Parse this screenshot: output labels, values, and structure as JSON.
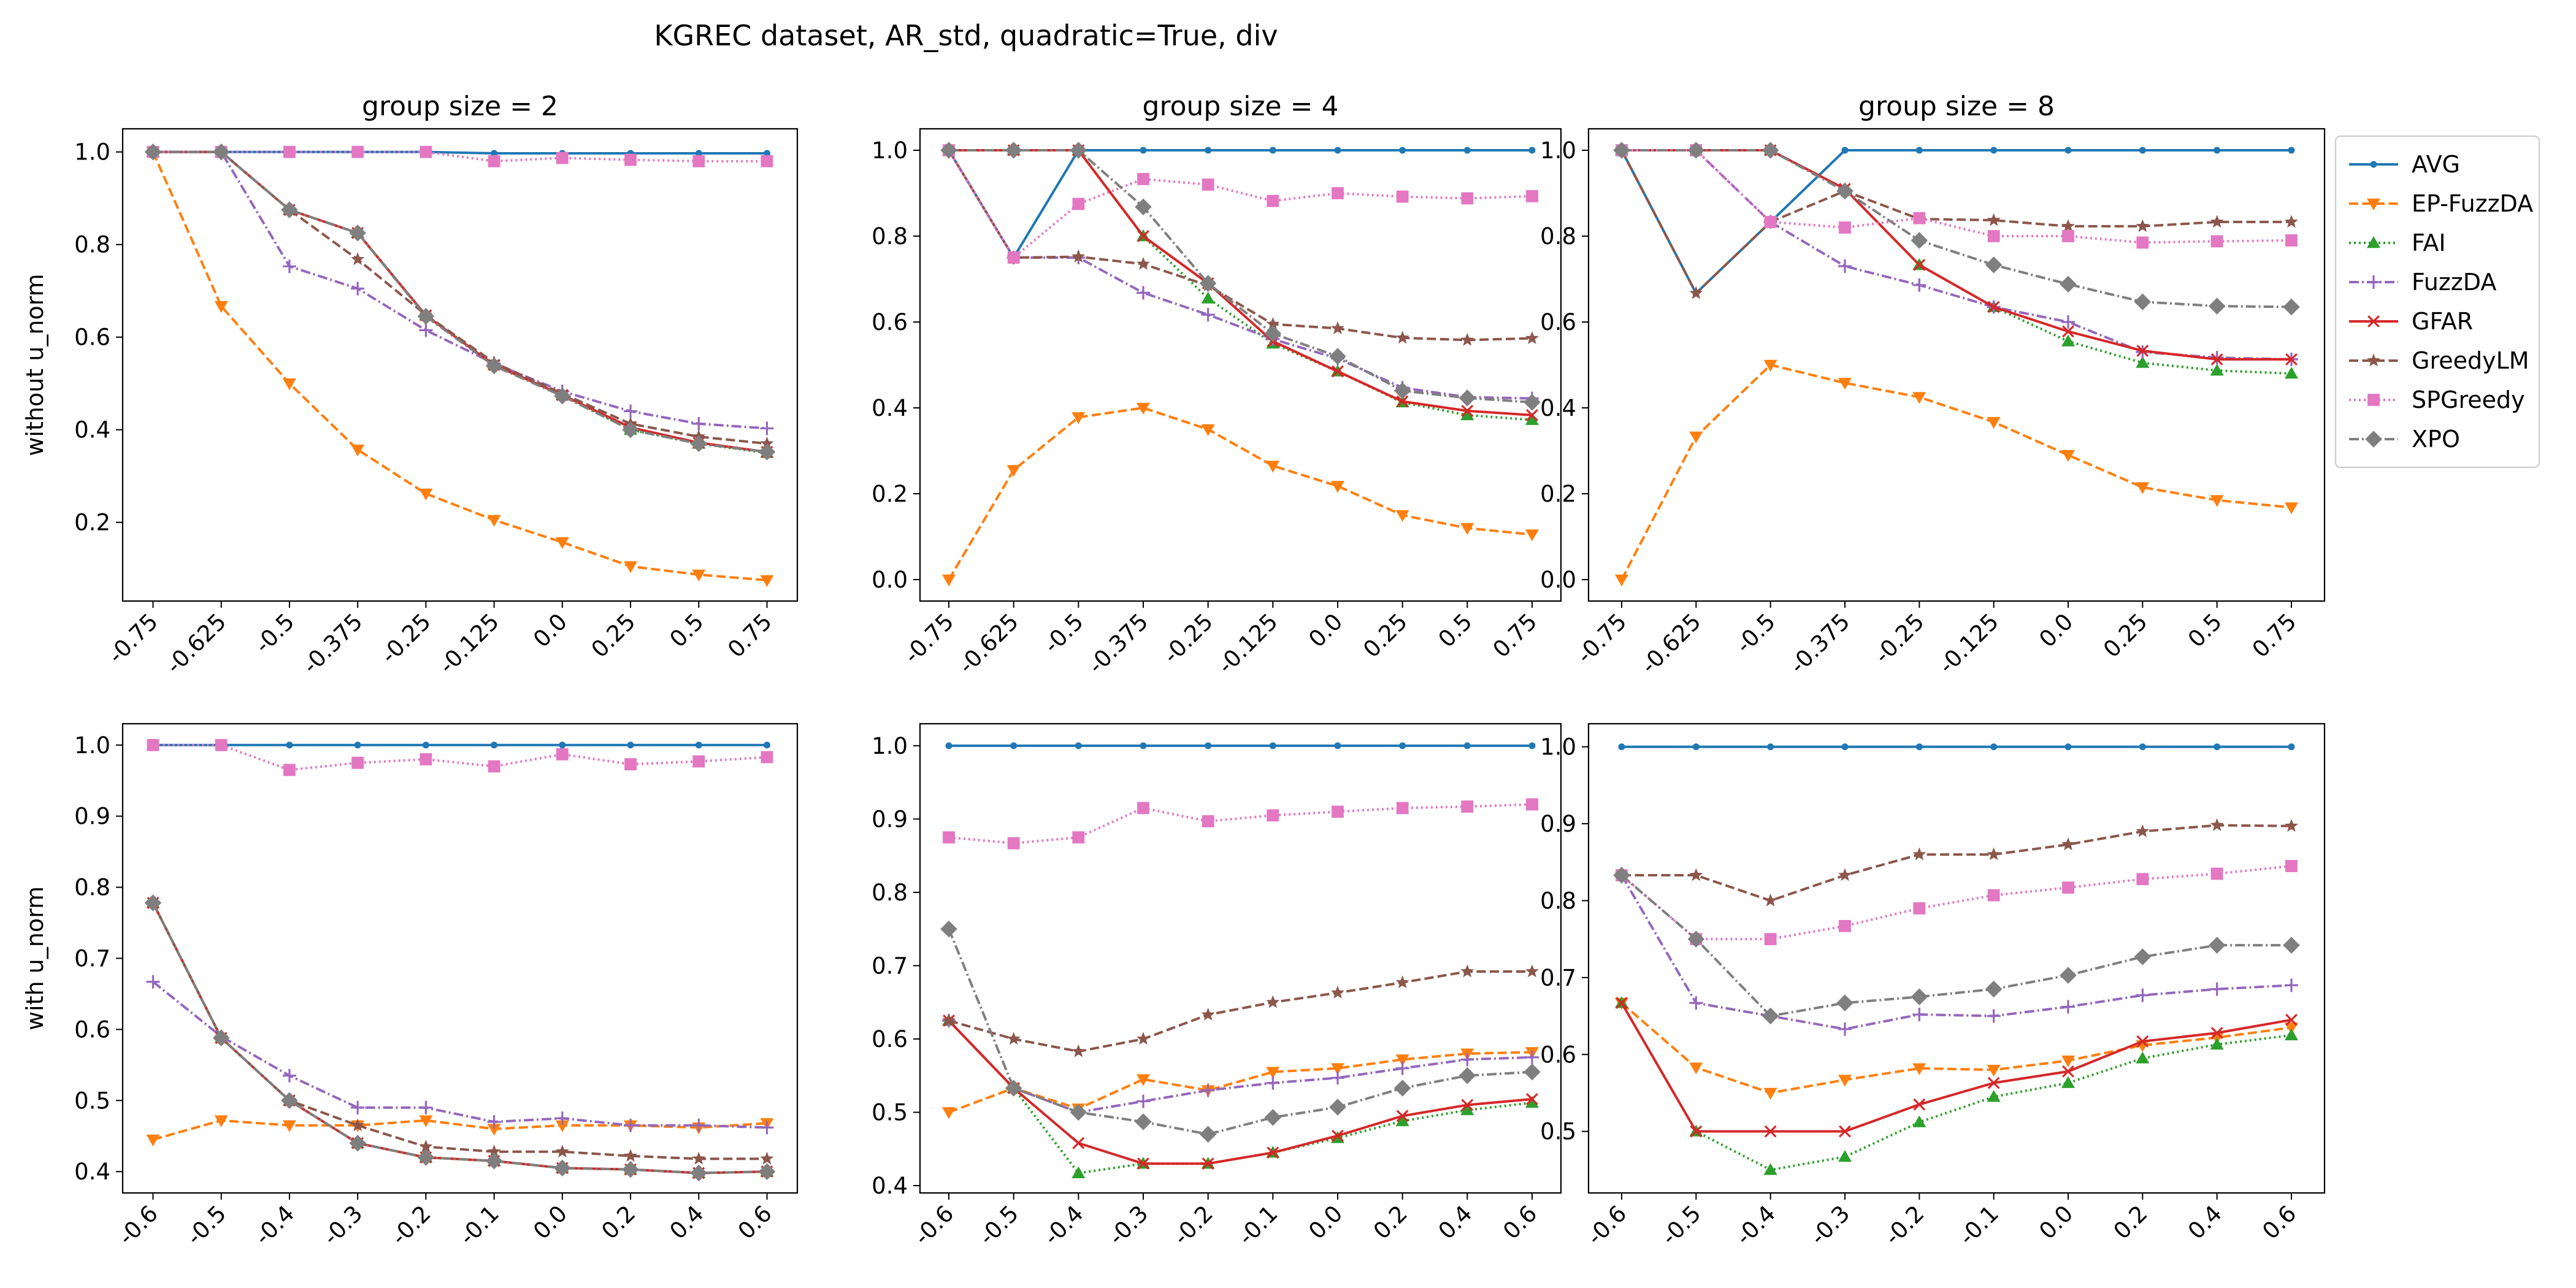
{
  "figure": {
    "suptitle": "KGREC dataset, AR_std, quadratic=True, div"
  },
  "series_styles": [
    {
      "name": "AVG",
      "color": "#1f77b4",
      "marker": "dot",
      "dash": "solid"
    },
    {
      "name": "EP-FuzzDA",
      "color": "#ff7f0e",
      "marker": "triangle-down",
      "dash": "dashed"
    },
    {
      "name": "FAI",
      "color": "#2ca02c",
      "marker": "triangle-up",
      "dash": "dotted"
    },
    {
      "name": "FuzzDA",
      "color": "#9467bd",
      "marker": "plus",
      "dash": "dashdot"
    },
    {
      "name": "GFAR",
      "color": "#d62728",
      "marker": "x",
      "dash": "solid"
    },
    {
      "name": "GreedyLM",
      "color": "#8c564b",
      "marker": "star",
      "dash": "dashed"
    },
    {
      "name": "SPGreedy",
      "color": "#e377c2",
      "marker": "square",
      "dash": "dotted"
    },
    {
      "name": "XPO",
      "color": "#7f7f7f",
      "marker": "diamond",
      "dash": "dashdot"
    }
  ],
  "chart_data": [
    {
      "type": "line",
      "row": 0,
      "col": 0,
      "title": "group size = 2",
      "ylabel": "without u_norm",
      "categories": [
        "-0.75",
        "-0.625",
        "-0.5",
        "-0.375",
        "-0.25",
        "-0.125",
        "0.0",
        "0.25",
        "0.5",
        "0.75"
      ],
      "ylim": [
        0.03,
        1.05
      ],
      "yticks": [
        0.2,
        0.4,
        0.6,
        0.8,
        1.0
      ],
      "ytick_labels": [
        "0.2",
        "0.4",
        "0.6",
        "0.8",
        "1.0"
      ],
      "series": [
        {
          "name": "AVG",
          "values": [
            1.0,
            1.0,
            1.0,
            1.0,
            1.0,
            0.997,
            0.997,
            0.997,
            0.997,
            0.997
          ]
        },
        {
          "name": "EP-FuzzDA",
          "values": [
            1.0,
            0.667,
            0.5,
            0.357,
            0.262,
            0.205,
            0.157,
            0.105,
            0.087,
            0.075
          ]
        },
        {
          "name": "FAI",
          "values": [
            1.0,
            1.0,
            0.875,
            0.825,
            0.647,
            0.54,
            0.475,
            0.4,
            0.37,
            0.35
          ]
        },
        {
          "name": "FuzzDA",
          "values": [
            1.0,
            1.0,
            0.753,
            0.705,
            0.615,
            0.543,
            0.483,
            0.44,
            0.413,
            0.403
          ]
        },
        {
          "name": "GFAR",
          "values": [
            1.0,
            1.0,
            0.875,
            0.825,
            0.647,
            0.54,
            0.475,
            0.405,
            0.372,
            0.352
          ]
        },
        {
          "name": "GreedyLM",
          "values": [
            1.0,
            1.0,
            0.875,
            0.768,
            0.648,
            0.545,
            0.478,
            0.413,
            0.385,
            0.37
          ]
        },
        {
          "name": "SPGreedy",
          "values": [
            1.0,
            1.0,
            1.0,
            1.0,
            1.0,
            0.98,
            0.987,
            0.983,
            0.98,
            0.98
          ]
        },
        {
          "name": "XPO",
          "values": [
            1.0,
            1.0,
            0.875,
            0.825,
            0.645,
            0.538,
            0.473,
            0.4,
            0.37,
            0.352
          ]
        }
      ]
    },
    {
      "type": "line",
      "row": 0,
      "col": 1,
      "title": "group size = 4",
      "ylabel": "",
      "categories": [
        "-0.75",
        "-0.625",
        "-0.5",
        "-0.375",
        "-0.25",
        "-0.125",
        "0.0",
        "0.25",
        "0.5",
        "0.75"
      ],
      "ylim": [
        -0.05,
        1.05
      ],
      "yticks": [
        0.0,
        0.2,
        0.4,
        0.6,
        0.8,
        1.0
      ],
      "ytick_labels": [
        "0.0",
        "0.2",
        "0.4",
        "0.6",
        "0.8",
        "1.0"
      ],
      "series": [
        {
          "name": "AVG",
          "values": [
            1.0,
            0.75,
            1.0,
            1.0,
            1.0,
            1.0,
            1.0,
            1.0,
            1.0,
            1.0
          ]
        },
        {
          "name": "EP-FuzzDA",
          "values": [
            0.0,
            0.255,
            0.378,
            0.4,
            0.35,
            0.265,
            0.218,
            0.15,
            0.12,
            0.105
          ]
        },
        {
          "name": "FAI",
          "values": [
            1.0,
            1.0,
            1.0,
            0.8,
            0.655,
            0.55,
            0.485,
            0.413,
            0.383,
            0.372
          ]
        },
        {
          "name": "FuzzDA",
          "values": [
            1.0,
            0.75,
            0.75,
            0.668,
            0.617,
            0.56,
            0.515,
            0.447,
            0.425,
            0.422
          ]
        },
        {
          "name": "GFAR",
          "values": [
            1.0,
            1.0,
            1.0,
            0.8,
            0.69,
            0.555,
            0.485,
            0.415,
            0.393,
            0.383
          ]
        },
        {
          "name": "GreedyLM",
          "values": [
            1.0,
            0.75,
            0.752,
            0.735,
            0.685,
            0.595,
            0.585,
            0.563,
            0.558,
            0.562
          ]
        },
        {
          "name": "SPGreedy",
          "values": [
            1.0,
            0.75,
            0.875,
            0.933,
            0.92,
            0.882,
            0.9,
            0.892,
            0.888,
            0.893
          ]
        },
        {
          "name": "XPO",
          "values": [
            1.0,
            1.0,
            1.0,
            0.868,
            0.69,
            0.573,
            0.52,
            0.44,
            0.423,
            0.413
          ]
        }
      ]
    },
    {
      "type": "line",
      "row": 0,
      "col": 2,
      "title": "group size = 8",
      "ylabel": "",
      "categories": [
        "-0.75",
        "-0.625",
        "-0.5",
        "-0.375",
        "-0.25",
        "-0.125",
        "0.0",
        "0.25",
        "0.5",
        "0.75"
      ],
      "ylim": [
        -0.05,
        1.05
      ],
      "yticks": [
        0.0,
        0.2,
        0.4,
        0.6,
        0.8,
        1.0
      ],
      "ytick_labels": [
        "0.0",
        "0.2",
        "0.4",
        "0.6",
        "0.8",
        "1.0"
      ],
      "series": [
        {
          "name": "AVG",
          "values": [
            1.0,
            0.667,
            0.833,
            1.0,
            1.0,
            1.0,
            1.0,
            1.0,
            1.0,
            1.0
          ]
        },
        {
          "name": "EP-FuzzDA",
          "values": [
            0.0,
            0.333,
            0.5,
            0.458,
            0.425,
            0.367,
            0.29,
            0.215,
            0.185,
            0.168
          ]
        },
        {
          "name": "FAI",
          "values": [
            1.0,
            1.0,
            1.0,
            0.91,
            0.733,
            0.635,
            0.555,
            0.505,
            0.487,
            0.48
          ]
        },
        {
          "name": "FuzzDA",
          "values": [
            1.0,
            1.0,
            0.833,
            0.73,
            0.686,
            0.635,
            0.6,
            0.53,
            0.517,
            0.513
          ]
        },
        {
          "name": "GFAR",
          "values": [
            1.0,
            1.0,
            1.0,
            0.91,
            0.733,
            0.635,
            0.578,
            0.533,
            0.513,
            0.513
          ]
        },
        {
          "name": "GreedyLM",
          "values": [
            1.0,
            0.667,
            0.833,
            0.905,
            0.84,
            0.837,
            0.823,
            0.823,
            0.833,
            0.833
          ]
        },
        {
          "name": "SPGreedy",
          "values": [
            1.0,
            1.0,
            0.833,
            0.82,
            0.842,
            0.8,
            0.8,
            0.785,
            0.788,
            0.79
          ]
        },
        {
          "name": "XPO",
          "values": [
            1.0,
            1.0,
            1.0,
            0.905,
            0.79,
            0.733,
            0.688,
            0.647,
            0.637,
            0.635
          ]
        }
      ]
    },
    {
      "type": "line",
      "row": 1,
      "col": 0,
      "title": "",
      "ylabel": "with u_norm",
      "categories": [
        "-0.6",
        "-0.5",
        "-0.4",
        "-0.3",
        "-0.2",
        "-0.1",
        "0.0",
        "0.2",
        "0.4",
        "0.6"
      ],
      "ylim": [
        0.37,
        1.03
      ],
      "yticks": [
        0.4,
        0.5,
        0.6,
        0.7,
        0.8,
        0.9,
        1.0
      ],
      "ytick_labels": [
        "0.4",
        "0.5",
        "0.6",
        "0.7",
        "0.8",
        "0.9",
        "1.0"
      ],
      "series": [
        {
          "name": "AVG",
          "values": [
            1.0,
            1.0,
            1.0,
            1.0,
            1.0,
            1.0,
            1.0,
            1.0,
            1.0,
            1.0
          ]
        },
        {
          "name": "EP-FuzzDA",
          "values": [
            0.445,
            0.472,
            0.465,
            0.465,
            0.472,
            0.46,
            0.465,
            0.465,
            0.462,
            0.468
          ]
        },
        {
          "name": "FAI",
          "values": [
            0.778,
            0.588,
            0.5,
            0.44,
            0.42,
            0.415,
            0.405,
            0.403,
            0.398,
            0.4
          ]
        },
        {
          "name": "FuzzDA",
          "values": [
            0.667,
            0.59,
            0.535,
            0.49,
            0.49,
            0.47,
            0.475,
            0.465,
            0.465,
            0.462
          ]
        },
        {
          "name": "GFAR",
          "values": [
            0.778,
            0.588,
            0.5,
            0.44,
            0.42,
            0.415,
            0.405,
            0.403,
            0.398,
            0.4
          ]
        },
        {
          "name": "GreedyLM",
          "values": [
            0.778,
            0.588,
            0.5,
            0.465,
            0.435,
            0.428,
            0.428,
            0.422,
            0.418,
            0.418
          ]
        },
        {
          "name": "SPGreedy",
          "values": [
            1.0,
            1.0,
            0.965,
            0.975,
            0.98,
            0.97,
            0.987,
            0.973,
            0.977,
            0.983
          ]
        },
        {
          "name": "XPO",
          "values": [
            0.778,
            0.588,
            0.5,
            0.44,
            0.42,
            0.415,
            0.405,
            0.403,
            0.398,
            0.4
          ]
        }
      ]
    },
    {
      "type": "line",
      "row": 1,
      "col": 1,
      "title": "",
      "ylabel": "",
      "categories": [
        "-0.6",
        "-0.5",
        "-0.4",
        "-0.3",
        "-0.2",
        "-0.1",
        "0.0",
        "0.2",
        "0.4",
        "0.6"
      ],
      "ylim": [
        0.39,
        1.03
      ],
      "yticks": [
        0.4,
        0.5,
        0.6,
        0.7,
        0.8,
        0.9,
        1.0
      ],
      "ytick_labels": [
        "0.4",
        "0.5",
        "0.6",
        "0.7",
        "0.8",
        "0.9",
        "1.0"
      ],
      "series": [
        {
          "name": "AVG",
          "values": [
            1.0,
            1.0,
            1.0,
            1.0,
            1.0,
            1.0,
            1.0,
            1.0,
            1.0,
            1.0
          ]
        },
        {
          "name": "EP-FuzzDA",
          "values": [
            0.5,
            0.533,
            0.505,
            0.545,
            0.53,
            0.555,
            0.56,
            0.572,
            0.58,
            0.582
          ]
        },
        {
          "name": "FAI",
          "values": [
            0.625,
            0.533,
            0.417,
            0.43,
            0.43,
            0.445,
            0.465,
            0.488,
            0.503,
            0.513
          ]
        },
        {
          "name": "FuzzDA",
          "values": [
            0.625,
            0.533,
            0.5,
            0.515,
            0.53,
            0.54,
            0.547,
            0.56,
            0.572,
            0.575
          ]
        },
        {
          "name": "GFAR",
          "values": [
            0.625,
            0.533,
            0.458,
            0.43,
            0.43,
            0.445,
            0.468,
            0.495,
            0.51,
            0.518
          ]
        },
        {
          "name": "GreedyLM",
          "values": [
            0.625,
            0.6,
            0.583,
            0.6,
            0.633,
            0.65,
            0.663,
            0.677,
            0.692,
            0.692
          ]
        },
        {
          "name": "SPGreedy",
          "values": [
            0.875,
            0.867,
            0.875,
            0.915,
            0.897,
            0.905,
            0.91,
            0.915,
            0.917,
            0.92
          ]
        },
        {
          "name": "XPO",
          "values": [
            0.75,
            0.533,
            0.5,
            0.487,
            0.47,
            0.493,
            0.507,
            0.533,
            0.55,
            0.555
          ]
        }
      ]
    },
    {
      "type": "line",
      "row": 1,
      "col": 2,
      "title": "",
      "ylabel": "",
      "categories": [
        "-0.6",
        "-0.5",
        "-0.4",
        "-0.3",
        "-0.2",
        "-0.1",
        "0.0",
        "0.2",
        "0.4",
        "0.6"
      ],
      "ylim": [
        0.42,
        1.03
      ],
      "yticks": [
        0.5,
        0.6,
        0.7,
        0.8,
        0.9,
        1.0
      ],
      "ytick_labels": [
        "0.5",
        "0.6",
        "0.7",
        "0.8",
        "0.9",
        "1.0"
      ],
      "series": [
        {
          "name": "AVG",
          "values": [
            1.0,
            1.0,
            1.0,
            1.0,
            1.0,
            1.0,
            1.0,
            1.0,
            1.0,
            1.0
          ]
        },
        {
          "name": "EP-FuzzDA",
          "values": [
            0.667,
            0.583,
            0.55,
            0.567,
            0.582,
            0.58,
            0.592,
            0.612,
            0.622,
            0.635
          ]
        },
        {
          "name": "FAI",
          "values": [
            0.667,
            0.5,
            0.45,
            0.467,
            0.512,
            0.545,
            0.563,
            0.595,
            0.613,
            0.625
          ]
        },
        {
          "name": "FuzzDA",
          "values": [
            0.833,
            0.667,
            0.65,
            0.633,
            0.652,
            0.65,
            0.662,
            0.677,
            0.685,
            0.69
          ]
        },
        {
          "name": "GFAR",
          "values": [
            0.667,
            0.5,
            0.5,
            0.5,
            0.535,
            0.563,
            0.578,
            0.617,
            0.628,
            0.645
          ]
        },
        {
          "name": "GreedyLM",
          "values": [
            0.833,
            0.833,
            0.8,
            0.833,
            0.86,
            0.86,
            0.873,
            0.89,
            0.898,
            0.897
          ]
        },
        {
          "name": "SPGreedy",
          "values": [
            0.833,
            0.75,
            0.75,
            0.767,
            0.79,
            0.807,
            0.817,
            0.828,
            0.835,
            0.845
          ]
        },
        {
          "name": "XPO",
          "values": [
            0.833,
            0.75,
            0.65,
            0.667,
            0.675,
            0.685,
            0.703,
            0.727,
            0.742,
            0.742
          ]
        }
      ]
    }
  ]
}
